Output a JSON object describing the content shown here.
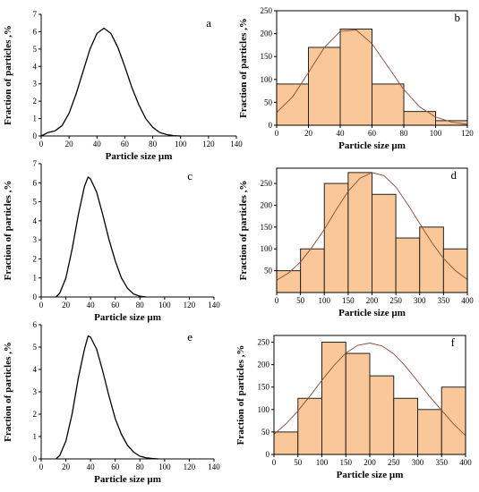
{
  "colors": {
    "bar_fill": "#fac898",
    "bar_stroke": "#222222",
    "fit_line": "#8b4a3a",
    "curve": "#000000"
  },
  "chart_data": [
    {
      "id": "a",
      "type": "line",
      "panel_label": "a",
      "xlabel": "Particle size µm",
      "ylabel": "Fraction of particles ,%",
      "xlim": [
        0,
        140
      ],
      "ylim": [
        0,
        7
      ],
      "xticks": [
        0,
        20,
        40,
        60,
        80,
        100,
        120,
        140
      ],
      "yticks": [
        0,
        1,
        2,
        3,
        4,
        5,
        6,
        7
      ],
      "series": [
        {
          "x": [
            0,
            5,
            10,
            15,
            20,
            25,
            30,
            35,
            40,
            45,
            50,
            55,
            60,
            65,
            70,
            75,
            80,
            85,
            90,
            95,
            100
          ],
          "y": [
            0,
            0.2,
            0.3,
            0.6,
            1.3,
            2.4,
            3.7,
            5.0,
            5.9,
            6.2,
            5.9,
            5.1,
            4.0,
            2.8,
            1.8,
            1.0,
            0.5,
            0.2,
            0.08,
            0.02,
            0
          ]
        }
      ]
    },
    {
      "id": "b",
      "type": "bar",
      "panel_label": "b",
      "xlabel": "Particle size µm",
      "ylabel": "Fraction of particles ,%",
      "xlim": [
        0,
        120
      ],
      "ylim": [
        0,
        250
      ],
      "xticks": [
        0,
        20,
        40,
        60,
        80,
        100,
        120
      ],
      "yticks": [
        0,
        50,
        100,
        150,
        200,
        250
      ],
      "bins": [
        [
          0,
          20
        ],
        [
          20,
          40
        ],
        [
          40,
          60
        ],
        [
          60,
          80
        ],
        [
          80,
          100
        ],
        [
          100,
          120
        ]
      ],
      "values": [
        90,
        170,
        210,
        90,
        30,
        10
      ],
      "fit": {
        "x": [
          0,
          10,
          20,
          30,
          40,
          50,
          60,
          70,
          80,
          90,
          100,
          110,
          120
        ],
        "y": [
          28,
          62,
          115,
          170,
          205,
          208,
          178,
          128,
          78,
          40,
          18,
          7,
          2
        ]
      }
    },
    {
      "id": "c",
      "type": "line",
      "panel_label": "c",
      "xlabel": "Particle size µm",
      "ylabel": "Fraction of particles ,%",
      "xlim": [
        0,
        140
      ],
      "ylim": [
        0,
        7
      ],
      "xticks": [
        0,
        20,
        40,
        60,
        80,
        100,
        120,
        140
      ],
      "yticks": [
        0,
        1,
        2,
        3,
        4,
        5,
        6,
        7
      ],
      "series": [
        {
          "x": [
            12,
            15,
            20,
            25,
            30,
            35,
            38,
            40,
            45,
            50,
            55,
            60,
            65,
            70,
            75,
            80,
            85
          ],
          "y": [
            0,
            0.2,
            1.0,
            2.5,
            4.3,
            5.8,
            6.3,
            6.2,
            5.5,
            4.3,
            3.0,
            1.9,
            1.0,
            0.45,
            0.15,
            0.04,
            0
          ]
        }
      ]
    },
    {
      "id": "d",
      "type": "bar",
      "panel_label": "d",
      "xlabel": "Particle size µm",
      "ylabel": "Fraction of particles ,%",
      "xlim": [
        0,
        400
      ],
      "ylim": [
        0,
        285
      ],
      "xticks": [
        0,
        50,
        100,
        150,
        200,
        250,
        300,
        350,
        400
      ],
      "yticks": [
        50,
        100,
        150,
        200,
        250
      ],
      "bins": [
        [
          0,
          50
        ],
        [
          50,
          100
        ],
        [
          100,
          150
        ],
        [
          150,
          200
        ],
        [
          200,
          250
        ],
        [
          250,
          300
        ],
        [
          300,
          350
        ],
        [
          350,
          400
        ]
      ],
      "values": [
        50,
        100,
        250,
        275,
        225,
        125,
        150,
        100
      ],
      "fit": {
        "x": [
          0,
          25,
          50,
          75,
          100,
          125,
          150,
          175,
          200,
          225,
          250,
          275,
          300,
          325,
          350,
          375,
          400
        ],
        "y": [
          28,
          45,
          70,
          105,
          145,
          190,
          232,
          262,
          275,
          268,
          242,
          202,
          158,
          115,
          78,
          50,
          30
        ]
      }
    },
    {
      "id": "e",
      "type": "line",
      "panel_label": "e",
      "xlabel": "Particle size µm",
      "ylabel": "Fraction of particles ,%",
      "xlim": [
        0,
        140
      ],
      "ylim": [
        0,
        6
      ],
      "xticks": [
        0,
        20,
        40,
        60,
        80,
        100,
        120,
        140
      ],
      "yticks": [
        0,
        1,
        2,
        3,
        4,
        5,
        6
      ],
      "series": [
        {
          "x": [
            12,
            15,
            20,
            25,
            30,
            35,
            38,
            40,
            45,
            50,
            55,
            60,
            65,
            70,
            75,
            80,
            85,
            90,
            95
          ],
          "y": [
            0,
            0.15,
            0.8,
            2.0,
            3.6,
            4.9,
            5.5,
            5.45,
            4.9,
            3.9,
            2.8,
            1.8,
            1.1,
            0.6,
            0.3,
            0.12,
            0.05,
            0.02,
            0
          ]
        }
      ]
    },
    {
      "id": "f",
      "type": "bar",
      "panel_label": "f",
      "xlabel": "Particle size µm",
      "ylabel": "Fraction of particles ,%",
      "xlim": [
        0,
        400
      ],
      "ylim": [
        0,
        265
      ],
      "xticks": [
        0,
        50,
        100,
        150,
        200,
        250,
        300,
        350,
        400
      ],
      "yticks": [
        0,
        50,
        100,
        150,
        200,
        250
      ],
      "bins": [
        [
          0,
          50
        ],
        [
          50,
          100
        ],
        [
          100,
          150
        ],
        [
          150,
          200
        ],
        [
          200,
          250
        ],
        [
          250,
          300
        ],
        [
          300,
          350
        ],
        [
          350,
          400
        ]
      ],
      "values": [
        50,
        125,
        250,
        225,
        175,
        125,
        100,
        150
      ],
      "fit": {
        "x": [
          0,
          25,
          50,
          75,
          100,
          125,
          150,
          175,
          200,
          225,
          250,
          275,
          300,
          325,
          350,
          375,
          400
        ],
        "y": [
          45,
          68,
          97,
          130,
          165,
          198,
          226,
          243,
          248,
          242,
          224,
          196,
          163,
          129,
          98,
          68,
          42
        ]
      }
    }
  ]
}
